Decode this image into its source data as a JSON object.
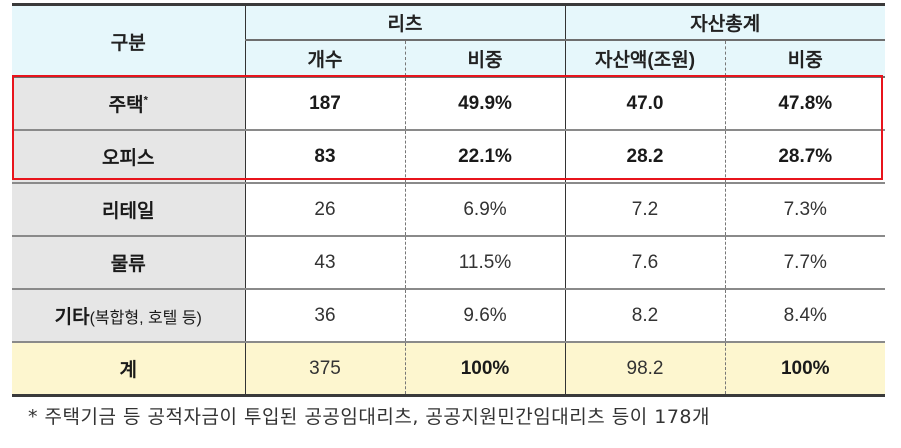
{
  "table": {
    "header": {
      "category_label": "구분",
      "group_reits": "리츠",
      "group_assets": "자산총계",
      "col_count": "개수",
      "col_reits_ratio": "비중",
      "col_asset_amount": "자산액(조원)",
      "col_asset_ratio": "비중"
    },
    "rows": [
      {
        "label": "주택",
        "sup": "*",
        "label_sub": "",
        "count": "187",
        "reits_ratio": "49.9%",
        "asset_amount": "47.0",
        "asset_ratio": "47.8%",
        "highlighted": true
      },
      {
        "label": "오피스",
        "sup": "",
        "label_sub": "",
        "count": "83",
        "reits_ratio": "22.1%",
        "asset_amount": "28.2",
        "asset_ratio": "28.7%",
        "highlighted": true
      },
      {
        "label": "리테일",
        "sup": "",
        "label_sub": "",
        "count": "26",
        "reits_ratio": "6.9%",
        "asset_amount": "7.2",
        "asset_ratio": "7.3%",
        "highlighted": false
      },
      {
        "label": "물류",
        "sup": "",
        "label_sub": "",
        "count": "43",
        "reits_ratio": "11.5%",
        "asset_amount": "7.6",
        "asset_ratio": "7.7%",
        "highlighted": false
      },
      {
        "label": "기타",
        "sup": "",
        "label_sub": "(복합형, 호텔 등)",
        "count": "36",
        "reits_ratio": "9.6%",
        "asset_amount": "8.2",
        "asset_ratio": "8.4%",
        "highlighted": false
      }
    ],
    "total": {
      "label": "계",
      "count": "375",
      "reits_ratio": "100%",
      "asset_amount": "98.2",
      "asset_ratio": "100%"
    }
  },
  "footnote": "* 주택기금 등 공적자금이 투입된 공공임대리츠, 공공지원민간임대리츠 등이 178개",
  "colors": {
    "header_bg": "#e6f7fb",
    "label_bg": "#e6e6e6",
    "total_bg": "#fdf6cf",
    "highlight_border": "#e8141c"
  }
}
